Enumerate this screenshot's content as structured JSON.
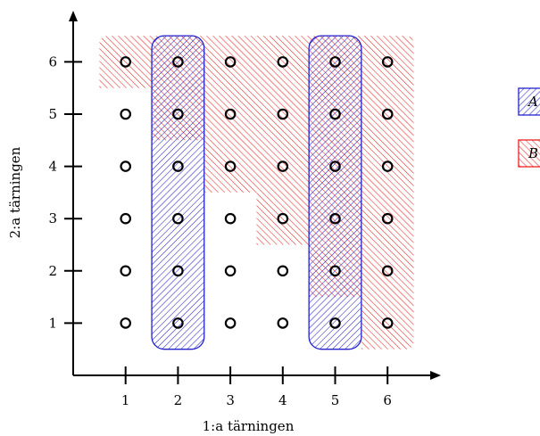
{
  "chart_data": {
    "type": "scatter",
    "xlabel": "1:a tärningen",
    "ylabel": "2:a tärningen",
    "x_ticks": [
      "1",
      "2",
      "3",
      "4",
      "5",
      "6"
    ],
    "y_ticks": [
      "1",
      "2",
      "3",
      "4",
      "5",
      "6"
    ],
    "xlim": [
      0,
      6.9
    ],
    "ylim": [
      0,
      7
    ],
    "points": [
      [
        1,
        1
      ],
      [
        1,
        2
      ],
      [
        1,
        3
      ],
      [
        1,
        4
      ],
      [
        1,
        5
      ],
      [
        1,
        6
      ],
      [
        2,
        1
      ],
      [
        2,
        2
      ],
      [
        2,
        3
      ],
      [
        2,
        4
      ],
      [
        2,
        5
      ],
      [
        2,
        6
      ],
      [
        3,
        1
      ],
      [
        3,
        2
      ],
      [
        3,
        3
      ],
      [
        3,
        4
      ],
      [
        3,
        5
      ],
      [
        3,
        6
      ],
      [
        4,
        1
      ],
      [
        4,
        2
      ],
      [
        4,
        3
      ],
      [
        4,
        4
      ],
      [
        4,
        5
      ],
      [
        4,
        6
      ],
      [
        5,
        1
      ],
      [
        5,
        2
      ],
      [
        5,
        3
      ],
      [
        5,
        4
      ],
      [
        5,
        5
      ],
      [
        5,
        6
      ],
      [
        6,
        1
      ],
      [
        6,
        2
      ],
      [
        6,
        3
      ],
      [
        6,
        4
      ],
      [
        6,
        5
      ],
      [
        6,
        6
      ]
    ],
    "sets": [
      {
        "name": "A",
        "color": "#2222cc",
        "hatch": "diagonal-forward",
        "columns": [
          2,
          5
        ]
      },
      {
        "name": "B",
        "color": "#ee2222",
        "hatch": "diagonal-backward",
        "top_boundary_cells": [
          [
            1,
            6
          ],
          [
            2,
            5
          ],
          [
            3,
            4
          ],
          [
            4,
            3
          ],
          [
            5,
            2
          ],
          [
            6,
            1
          ]
        ]
      }
    ],
    "legend_placement": "right"
  }
}
